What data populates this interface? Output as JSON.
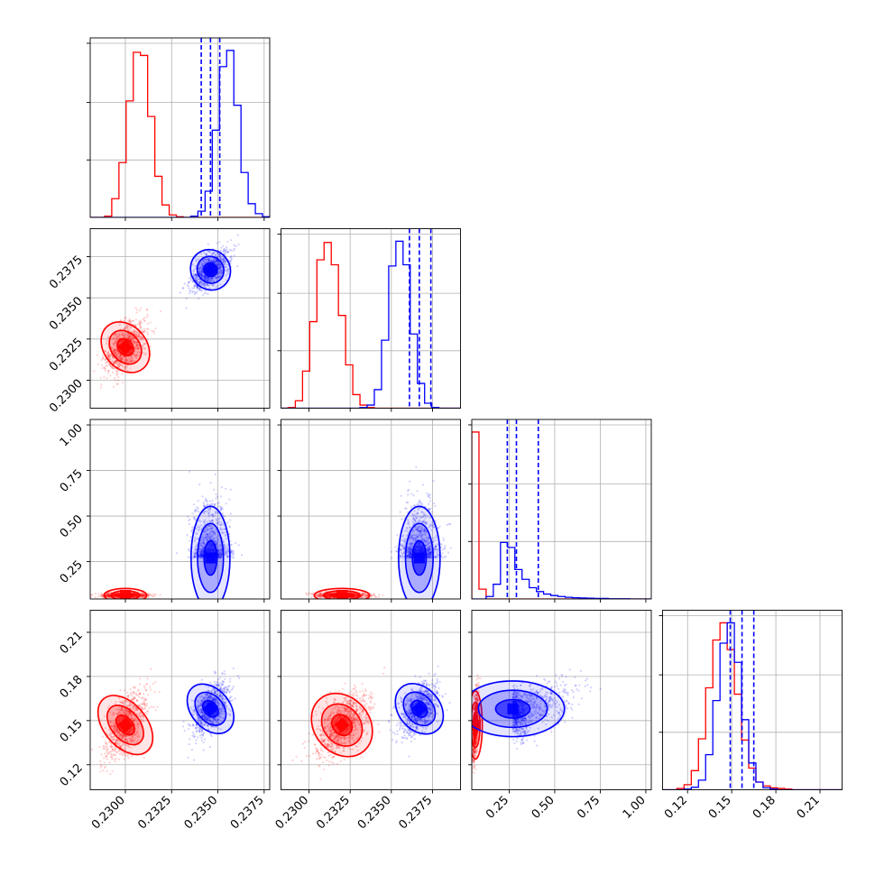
{
  "chart_data": {
    "type": "corner",
    "colors": {
      "red": "#ff0000",
      "blue": "#0000ff",
      "grid": "#b0b0b0"
    },
    "grid": true,
    "params": [
      {
        "range": [
          0.2281,
          0.2378
        ],
        "ticks": [
          0.23,
          0.2325,
          0.235,
          0.2375
        ],
        "tick_labels": [
          "0.2300",
          "0.2325",
          "0.2350",
          "0.2375"
        ]
      },
      {
        "range": [
          0.2283,
          0.2392
        ],
        "ticks": [
          0.23,
          0.2325,
          0.235,
          0.2375
        ],
        "tick_labels": [
          "0.2300",
          "0.2325",
          "0.2350",
          "0.2375"
        ]
      },
      {
        "range": [
          0.045,
          1.03
        ],
        "ticks": [
          0.25,
          0.5,
          0.75,
          1.0
        ],
        "tick_labels": [
          "0.25",
          "0.50",
          "0.75",
          "1.00"
        ]
      },
      {
        "range": [
          0.103,
          0.225
        ],
        "ticks": [
          0.12,
          0.15,
          0.18,
          0.21
        ],
        "tick_labels": [
          "0.12",
          "0.15",
          "0.18",
          "0.21"
        ]
      }
    ],
    "series": [
      {
        "name": "",
        "color": "#ff0000",
        "mean": [
          0.23,
          0.232,
          0.065,
          0.147
        ],
        "sd": [
          0.00055,
          0.0008,
          0.012,
          0.011
        ],
        "quantiles": []
      },
      {
        "name": "",
        "color": "#0000ff",
        "mean": [
          0.2346,
          0.2367,
          0.27,
          0.158
        ],
        "sd": [
          0.0005,
          0.0006,
          0.09,
          0.009
        ],
        "quantiles": [
          [
            0.2341,
            0.2346,
            0.2351
          ],
          [
            0.2361,
            0.2367,
            0.2374
          ],
          [
            0.24,
            0.29,
            0.41
          ],
          [
            0.149,
            0.157,
            0.165
          ]
        ]
      }
    ],
    "histograms": [
      {
        "bins": [
          0.2281,
          0.2378
        ],
        "red": [
          0,
          0,
          2,
          30,
          88,
          187,
          265,
          260,
          162,
          66,
          20,
          4,
          1,
          0,
          0,
          0,
          0,
          0,
          0,
          0,
          0,
          0,
          0,
          0,
          0
        ],
        "blue": [
          0,
          0,
          0,
          0,
          0,
          0,
          0,
          0,
          0,
          0,
          0,
          0,
          0,
          0,
          2,
          10,
          42,
          140,
          242,
          268,
          180,
          72,
          22,
          6,
          1
        ]
      },
      {
        "bins": [
          0.2283,
          0.2392
        ],
        "red": [
          0,
          1,
          12,
          60,
          140,
          240,
          268,
          232,
          150,
          70,
          22,
          5,
          1,
          0,
          0,
          0,
          0,
          0,
          0,
          0,
          0,
          0,
          0,
          0,
          0
        ],
        "blue": [
          0,
          0,
          0,
          0,
          0,
          0,
          0,
          0,
          0,
          0,
          0,
          1,
          5,
          30,
          110,
          230,
          270,
          232,
          120,
          40,
          8,
          1,
          0,
          0,
          0
        ]
      },
      {
        "bins": [
          0.045,
          1.03
        ],
        "red": [
          680,
          40,
          0,
          0,
          0,
          0,
          0,
          0,
          0,
          0,
          0,
          0,
          0,
          0,
          0,
          0,
          0,
          0,
          0,
          0,
          0,
          0,
          0,
          0,
          0
        ],
        "blue": [
          0,
          0,
          10,
          60,
          230,
          210,
          120,
          80,
          46,
          30,
          20,
          14,
          10,
          7,
          5,
          4,
          3,
          2,
          2,
          1,
          1,
          1,
          0,
          0,
          0
        ]
      },
      {
        "bins": [
          0.103,
          0.225
        ],
        "red": [
          0,
          0,
          2,
          8,
          30,
          80,
          160,
          235,
          262,
          220,
          150,
          78,
          34,
          12,
          6,
          3,
          2,
          1,
          0,
          0,
          0,
          0,
          0,
          0,
          0
        ],
        "blue": [
          0,
          0,
          0,
          1,
          4,
          15,
          55,
          140,
          230,
          262,
          200,
          110,
          42,
          12,
          3,
          1,
          0,
          0,
          0,
          0,
          0,
          0,
          0,
          0,
          0
        ]
      }
    ]
  }
}
